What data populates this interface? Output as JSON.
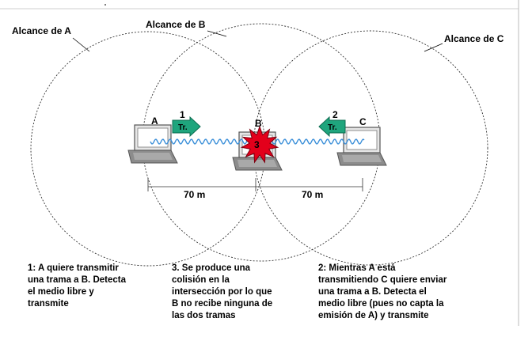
{
  "ranges": {
    "a": "Alcance de A",
    "b": "Alcance de B",
    "c": "Alcance de C"
  },
  "nodes": {
    "a": "A",
    "b": "B",
    "c": "C"
  },
  "frames": {
    "left": {
      "step": "1",
      "label": "Tr."
    },
    "right": {
      "step": "2",
      "label": "Tr."
    }
  },
  "collision": {
    "step": "3"
  },
  "distances": {
    "ab": "70 m",
    "bc": "70 m"
  },
  "captions": {
    "step1": "1: A quiere transmitir\nuna trama a B. Detecta\nel medio libre y\ntransmite",
    "step3": "3. Se produce una\ncolisión en la\nintersección por lo que\nB no recibe ninguna de\nlas dos tramas",
    "step2": "2: Mientras A está\ntransmitiendo C quiere enviar\nuna trama a B. Detecta el\nmedio libre (pues no capta la\nemisión de A) y transmite"
  },
  "colors": {
    "arrow": "#1fa57d",
    "collision": "#e3001b",
    "wave": "#3b8fd9",
    "laptop": "#808080"
  }
}
